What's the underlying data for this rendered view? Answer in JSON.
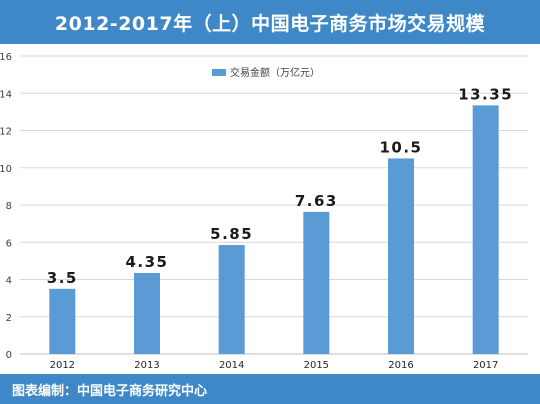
{
  "header": {
    "title": "2012-2017年（上）中国电子商务市场交易规模"
  },
  "footer": {
    "text": "图表编制：中国电子商务研究中心"
  },
  "chart_data": {
    "type": "bar",
    "title": "2012-2017年（上）中国电子商务市场交易规模",
    "categories": [
      "2012",
      "2013",
      "2014",
      "2015",
      "2016",
      "2017"
    ],
    "series": [
      {
        "name": "交易金额（万亿元）",
        "values": [
          3.5,
          4.35,
          5.85,
          7.63,
          10.5,
          13.35
        ]
      }
    ],
    "value_labels": [
      "3.5",
      "4.35",
      "5.85",
      "7.63",
      "10.5",
      "13.35"
    ],
    "ylim": [
      0,
      16
    ],
    "yticks": [
      0,
      2,
      4,
      6,
      8,
      10,
      12,
      14,
      16
    ],
    "grid": true,
    "legend": "top-center",
    "bar_color": "#5b9bd5"
  }
}
